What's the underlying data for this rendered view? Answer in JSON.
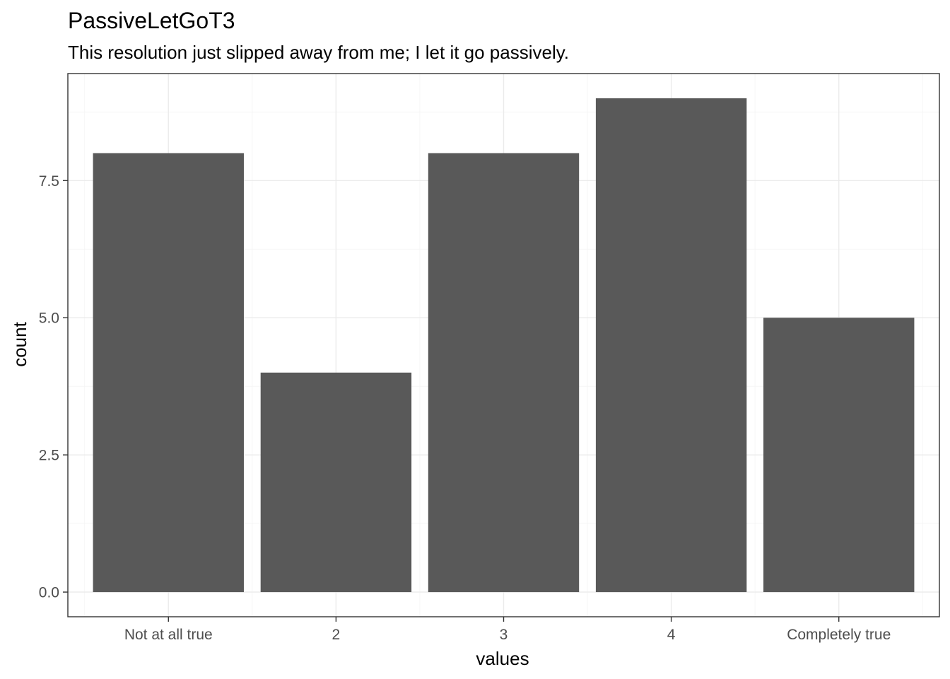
{
  "chart_data": {
    "type": "bar",
    "title": "PassiveLetGoT3",
    "subtitle": "This resolution just slipped away from me; I let it go passively.",
    "xlabel": "values",
    "ylabel": "count",
    "categories": [
      "Not at all true",
      "2",
      "3",
      "4",
      "Completely true"
    ],
    "values": [
      8,
      4,
      8,
      9,
      5
    ],
    "ylim": [
      -0.45,
      9.45
    ],
    "yticks": [
      0.0,
      2.5,
      5.0,
      7.5
    ],
    "ytick_labels": [
      "0.0",
      "2.5",
      "5.0",
      "7.5"
    ],
    "grid": true,
    "legend": "none",
    "bar_color": "#595959"
  }
}
